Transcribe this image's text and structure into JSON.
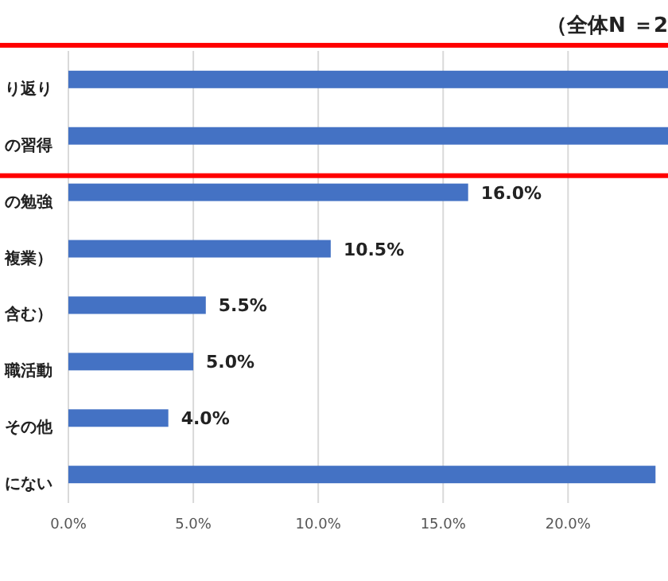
{
  "chart_data": {
    "type": "bar",
    "orientation": "horizontal",
    "categories": [
      "り返り",
      "の習得",
      "の勉強",
      "複業）",
      "含む）",
      "職活動",
      "その他",
      "にない"
    ],
    "values": [
      24,
      24,
      16.0,
      10.5,
      5.5,
      5.0,
      4.0,
      23.5
    ],
    "value_labels": [
      null,
      null,
      "16.0%",
      "10.5%",
      "5.5%",
      "5.0%",
      "4.0%",
      null
    ],
    "color": "#4472c4",
    "xlim": [
      0,
      24
    ],
    "xticks": [
      {
        "value": 0,
        "label": "0.0%"
      },
      {
        "value": 5,
        "label": "5.0%"
      },
      {
        "value": 10,
        "label": "10.0%"
      },
      {
        "value": 15,
        "label": "15.0%"
      },
      {
        "value": 20,
        "label": "20.0%"
      }
    ],
    "grid": "x",
    "annotations": [
      "（全体N ＝2"
    ]
  }
}
